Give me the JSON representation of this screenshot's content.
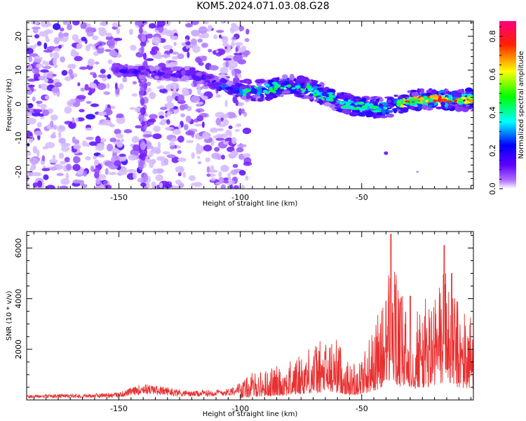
{
  "title": "KOM5.2024.071.03.08.G28",
  "chart_data": [
    {
      "type": "heatmap",
      "xlabel": "Height of straight line (km)",
      "ylabel": "Frequency (Hz)",
      "xlim": [
        -188,
        -4
      ],
      "ylim": [
        -25,
        24.5
      ],
      "xticks": [
        "-150",
        "-100",
        "-50"
      ],
      "xtick_values": [
        -150,
        -100,
        -50
      ],
      "yticks": [
        "-20",
        "-10",
        "0",
        "10",
        "20"
      ],
      "ytick_values": [
        -20,
        -10,
        0,
        10,
        20
      ],
      "ridge": {
        "description_points": [
          [
            -150,
            10
          ],
          [
            -130,
            9
          ],
          [
            -120,
            9
          ],
          [
            -110,
            6
          ],
          [
            -100,
            4
          ],
          [
            -90,
            4
          ],
          [
            -80,
            6
          ],
          [
            -70,
            4
          ],
          [
            -60,
            1
          ],
          [
            -50,
            -1
          ],
          [
            -40,
            -1
          ],
          [
            -30,
            1
          ],
          [
            -20,
            1.5
          ],
          [
            -10,
            1
          ],
          [
            -4,
            1.5
          ]
        ]
      },
      "noise_region_x": [
        -188,
        -100
      ],
      "colorbar": {
        "label": "Normalized spectral amplitude",
        "ticks": [
          "0.0",
          "0.2",
          "0.4",
          "0.6",
          "0.8"
        ],
        "tick_values": [
          0.0,
          0.2,
          0.4,
          0.6,
          0.8
        ],
        "range": [
          0.0,
          0.88
        ],
        "colors": [
          "#ffffff",
          "#7a00ff",
          "#0000ff",
          "#00ffff",
          "#00ff00",
          "#ffff00",
          "#ff0000",
          "#ff0080"
        ]
      }
    },
    {
      "type": "line",
      "xlabel": "Height of straight line (km)",
      "ylabel": "SNR (10 * v/v)",
      "xlim": [
        -188,
        -4
      ],
      "ylim": [
        0,
        6650
      ],
      "xticks": [
        "-150",
        "-100",
        "-50"
      ],
      "xtick_values": [
        -150,
        -100,
        -50
      ],
      "yticks": [
        "2000",
        "4000",
        "6000"
      ],
      "ytick_values": [
        2000,
        4000,
        6000
      ],
      "color": "#e83030",
      "envelope": [
        [
          -188,
          200
        ],
        [
          -160,
          250
        ],
        [
          -150,
          300
        ],
        [
          -140,
          650
        ],
        [
          -120,
          350
        ],
        [
          -105,
          450
        ],
        [
          -100,
          700
        ],
        [
          -95,
          1100
        ],
        [
          -90,
          1200
        ],
        [
          -80,
          1500
        ],
        [
          -70,
          2300
        ],
        [
          -60,
          2500
        ],
        [
          -55,
          1400
        ],
        [
          -50,
          1800
        ],
        [
          -45,
          3000
        ],
        [
          -40,
          4200
        ],
        [
          -38,
          6500
        ],
        [
          -35,
          4500
        ],
        [
          -30,
          3500
        ],
        [
          -20,
          4300
        ],
        [
          -15,
          6000
        ],
        [
          -10,
          3800
        ],
        [
          -4,
          3500
        ]
      ],
      "peaks": [
        [
          -38,
          6550
        ],
        [
          -16,
          6100
        ],
        [
          -13,
          5000
        ],
        [
          -40,
          3900
        ],
        [
          -30,
          4100
        ]
      ]
    }
  ]
}
